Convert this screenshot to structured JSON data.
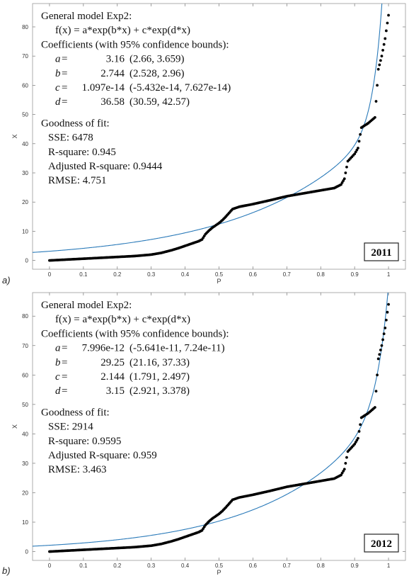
{
  "chart_data": [
    {
      "type": "scatter",
      "panel_label": "a)",
      "xlabel": "P",
      "ylabel": "X",
      "xlim": [
        -0.05,
        1.05
      ],
      "ylim": [
        -3,
        88
      ],
      "x_ticks": [
        0,
        0.1,
        0.2,
        0.3,
        0.4,
        0.5,
        0.6,
        0.7,
        0.8,
        0.9,
        1
      ],
      "x_tick_labels": [
        "0",
        "0.1",
        "0.2",
        "0.3",
        "0.4",
        "0.5",
        "0.6",
        "0.7",
        "0.8",
        "0.9",
        "1"
      ],
      "y_ticks": [
        0,
        10,
        20,
        30,
        40,
        50,
        60,
        70,
        80
      ],
      "y_tick_labels": [
        "0",
        "10",
        "20",
        "30",
        "40",
        "50",
        "60",
        "70",
        "80"
      ],
      "grid": false,
      "year_label": "2011",
      "annotation": {
        "model_title": "General model Exp2:",
        "formula": "f(x) = a*exp(b*x) + c*exp(d*x)",
        "coef_title": "Coefficients (with 95% confidence bounds):",
        "coefficients": [
          {
            "name": "a",
            "eq": " =",
            "value": "3.16",
            "bounds": "(2.66, 3.659)"
          },
          {
            "name": "b",
            "eq": " =",
            "value": "2.744",
            "bounds": "(2.528, 2.96)"
          },
          {
            "name": "c",
            "eq": " =",
            "value": "1.097e-14",
            "bounds": "(-5.432e-14, 7.627e-14)"
          },
          {
            "name": "d",
            "eq": " =",
            "value": "36.58",
            "bounds": "(30.59, 42.57)"
          }
        ],
        "gof_title": "Goodness of fit:",
        "gof": [
          "SSE: 6478",
          "R-square: 0.945",
          "Adjusted R-square: 0.9444",
          "RMSE: 4.751"
        ]
      },
      "fit": {
        "a": 3.16,
        "b": 2.744,
        "c": 1.097e-14,
        "d": 36.58,
        "color": "#2a7ab9"
      },
      "series": [
        {
          "color": "#000000",
          "points": [
            [
              0,
              0
            ],
            [
              0.05,
              0.3
            ],
            [
              0.1,
              0.6
            ],
            [
              0.15,
              0.9
            ],
            [
              0.2,
              1.2
            ],
            [
              0.25,
              1.5
            ],
            [
              0.3,
              2.0
            ],
            [
              0.33,
              2.6
            ],
            [
              0.36,
              3.5
            ],
            [
              0.38,
              4.2
            ],
            [
              0.4,
              5.0
            ],
            [
              0.42,
              5.8
            ],
            [
              0.44,
              6.6
            ],
            [
              0.45,
              7.2
            ],
            [
              0.46,
              9.0
            ],
            [
              0.47,
              10.2
            ],
            [
              0.48,
              11.2
            ],
            [
              0.5,
              12.8
            ],
            [
              0.51,
              13.8
            ],
            [
              0.52,
              15.0
            ],
            [
              0.53,
              16.3
            ],
            [
              0.54,
              17.6
            ],
            [
              0.56,
              18.4
            ],
            [
              0.6,
              19.3
            ],
            [
              0.65,
              20.6
            ],
            [
              0.7,
              22.0
            ],
            [
              0.75,
              23.0
            ],
            [
              0.8,
              24.0
            ],
            [
              0.84,
              24.8
            ],
            [
              0.86,
              26.0
            ],
            [
              0.87,
              28.0
            ],
            [
              0.88,
              34.0
            ],
            [
              0.9,
              36.5
            ],
            [
              0.91,
              38.5
            ],
            [
              0.92,
              45.5
            ],
            [
              0.94,
              47.0
            ],
            [
              0.96,
              49.0
            ],
            [
              0.97,
              65.5
            ],
            [
              0.98,
              70.0
            ],
            [
              0.99,
              76.0
            ],
            [
              1.0,
              84.0
            ]
          ]
        }
      ]
    },
    {
      "type": "scatter",
      "panel_label": "b)",
      "xlabel": "P",
      "ylabel": "X",
      "xlim": [
        -0.05,
        1.05
      ],
      "ylim": [
        -3,
        88
      ],
      "x_ticks": [
        0,
        0.1,
        0.2,
        0.3,
        0.4,
        0.5,
        0.6,
        0.7,
        0.8,
        0.9,
        1
      ],
      "x_tick_labels": [
        "0",
        "0.1",
        "0.2",
        "0.3",
        "0.4",
        "0.5",
        "0.6",
        "0.7",
        "0.8",
        "0.9",
        "1"
      ],
      "y_ticks": [
        0,
        10,
        20,
        30,
        40,
        50,
        60,
        70,
        80
      ],
      "y_tick_labels": [
        "0",
        "10",
        "20",
        "30",
        "40",
        "50",
        "60",
        "70",
        "80"
      ],
      "grid": false,
      "year_label": "2012",
      "annotation": {
        "model_title": "General model Exp2:",
        "formula": "f(x) = a*exp(b*x) + c*exp(d*x)",
        "coef_title": "Coefficients (with 95% confidence bounds):",
        "coefficients": [
          {
            "name": "a",
            "eq": " =",
            "value": "7.996e-12",
            "bounds": "(-5.641e-11, 7.24e-11)"
          },
          {
            "name": "b",
            "eq": " =",
            "value": "29.25",
            "bounds": "(21.16, 37.33)"
          },
          {
            "name": "c",
            "eq": " =",
            "value": "2.144",
            "bounds": "(1.791, 2.497)"
          },
          {
            "name": "d",
            "eq": " =",
            "value": "3.15",
            "bounds": "(2.921, 3.378)"
          }
        ],
        "gof_title": "Goodness of fit:",
        "gof": [
          "SSE: 2914",
          "R-square: 0.9595",
          "Adjusted R-square: 0.959",
          "RMSE: 3.463"
        ]
      },
      "fit": {
        "a": 7.996e-12,
        "b": 29.25,
        "c": 2.144,
        "d": 3.15,
        "color": "#2a7ab9"
      },
      "series": [
        {
          "color": "#000000",
          "points": [
            [
              0,
              0
            ],
            [
              0.05,
              0.3
            ],
            [
              0.1,
              0.6
            ],
            [
              0.15,
              0.9
            ],
            [
              0.2,
              1.2
            ],
            [
              0.25,
              1.5
            ],
            [
              0.3,
              2.0
            ],
            [
              0.33,
              2.6
            ],
            [
              0.36,
              3.5
            ],
            [
              0.38,
              4.2
            ],
            [
              0.4,
              5.0
            ],
            [
              0.42,
              5.8
            ],
            [
              0.44,
              6.6
            ],
            [
              0.45,
              7.2
            ],
            [
              0.46,
              9.0
            ],
            [
              0.47,
              10.2
            ],
            [
              0.48,
              11.2
            ],
            [
              0.5,
              12.8
            ],
            [
              0.51,
              13.8
            ],
            [
              0.52,
              15.0
            ],
            [
              0.53,
              16.3
            ],
            [
              0.54,
              17.6
            ],
            [
              0.56,
              18.4
            ],
            [
              0.6,
              19.3
            ],
            [
              0.65,
              20.6
            ],
            [
              0.7,
              22.0
            ],
            [
              0.75,
              23.0
            ],
            [
              0.8,
              24.0
            ],
            [
              0.84,
              24.8
            ],
            [
              0.86,
              26.0
            ],
            [
              0.87,
              28.0
            ],
            [
              0.88,
              34.0
            ],
            [
              0.9,
              36.5
            ],
            [
              0.91,
              38.5
            ],
            [
              0.92,
              45.5
            ],
            [
              0.94,
              47.0
            ],
            [
              0.96,
              49.0
            ],
            [
              0.97,
              65.5
            ],
            [
              0.98,
              70.0
            ],
            [
              0.99,
              76.0
            ],
            [
              1.0,
              84.0
            ]
          ]
        }
      ]
    }
  ]
}
